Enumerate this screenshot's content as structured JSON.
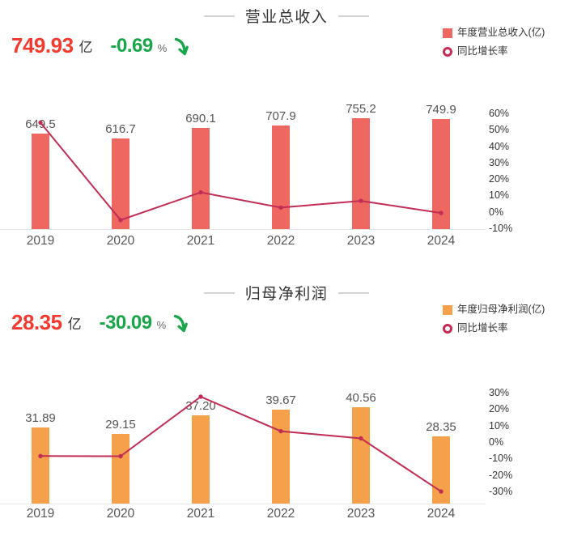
{
  "chart_data": [
    {
      "id": "revenue",
      "type": "bar+line",
      "title": "营业总收入",
      "stat": {
        "value": "749.93",
        "unit": "亿",
        "change": "-0.69",
        "percent_sign": "%",
        "direction": "down",
        "value_color": "#f23a30",
        "change_color": "#18a64a"
      },
      "legend": [
        "年度营业总收入(亿)",
        "同比增长率"
      ],
      "legend_position": "top-right",
      "grid": false,
      "categories": [
        "2019",
        "2020",
        "2021",
        "2022",
        "2023",
        "2024"
      ],
      "series": [
        {
          "name": "年度营业总收入(亿)",
          "type": "bar",
          "color": "#ee6760",
          "values": [
            649.5,
            616.7,
            690.1,
            707.9,
            755.2,
            749.9
          ],
          "labels": [
            "649.5",
            "616.7",
            "690.1",
            "707.9",
            "755.2",
            "749.9"
          ]
        },
        {
          "name": "同比增长率",
          "type": "line",
          "unit": "%",
          "color": "#c12d55",
          "values": [
            54.3,
            -5.0,
            11.9,
            2.6,
            6.7,
            -0.69
          ]
        }
      ],
      "y_axis_right": {
        "tick_labels": [
          "60%",
          "50%",
          "40%",
          "30%",
          "20%",
          "10%",
          "0%",
          "-10%"
        ],
        "tick_values": [
          60,
          50,
          40,
          30,
          20,
          10,
          0,
          -10
        ]
      }
    },
    {
      "id": "profit",
      "type": "bar+line",
      "title": "归母净利润",
      "stat": {
        "value": "28.35",
        "unit": "亿",
        "change": "-30.09",
        "percent_sign": "%",
        "direction": "down",
        "value_color": "#f23a30",
        "change_color": "#18a64a"
      },
      "legend": [
        "年度归母净利润(亿)",
        "同比增长率"
      ],
      "legend_position": "top-right",
      "grid": false,
      "categories": [
        "2019",
        "2020",
        "2021",
        "2022",
        "2023",
        "2024"
      ],
      "series": [
        {
          "name": "年度归母净利润(亿)",
          "type": "bar",
          "color": "#f5a04b",
          "values": [
            31.89,
            29.15,
            37.2,
            39.67,
            40.56,
            28.35
          ],
          "labels": [
            "31.89",
            "29.15",
            "37.20",
            "39.67",
            "40.56",
            "28.35"
          ]
        },
        {
          "name": "同比增长率",
          "type": "line",
          "unit": "%",
          "color": "#c12d55",
          "values": [
            -8.5,
            -8.6,
            27.6,
            6.6,
            2.2,
            -30.09
          ]
        }
      ],
      "y_axis_right": {
        "tick_labels": [
          "30%",
          "20%",
          "10%",
          "0%",
          "-10%",
          "-20%",
          "-30%"
        ],
        "tick_values": [
          30,
          20,
          10,
          0,
          -10,
          -20,
          -30
        ]
      }
    }
  ]
}
